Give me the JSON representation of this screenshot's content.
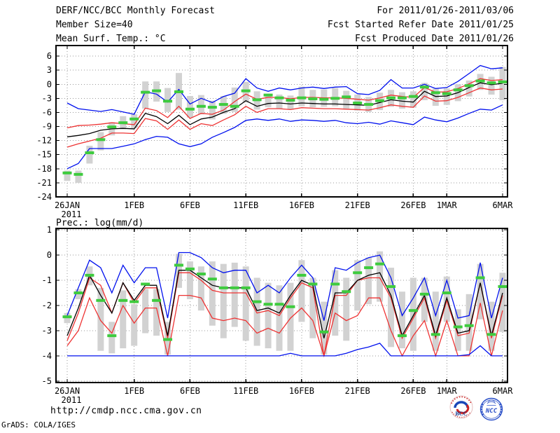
{
  "header": {
    "rows": [
      {
        "left": "DERF/NCC/BCC Monthly Forecast",
        "right": "For 2011/01/26-2011/03/06"
      },
      {
        "left": "Member Size=40",
        "right": "Fcst Started Refer Date 2011/01/25"
      },
      {
        "left": "Mean Surf. Temp.: °C",
        "right": "Fcst Produced Date 2011/01/26"
      }
    ]
  },
  "footer": {
    "url": "http://cmdp.ncc.cma.gov.cn",
    "credit": "GrADS: COLA/IGES",
    "logos": [
      {
        "label": "BCC"
      },
      {
        "label": "NCC"
      }
    ]
  },
  "colors": {
    "line_blue": "#0010ee",
    "line_red": "#ee3333",
    "line_black": "#000000",
    "marker_green": "#3ecb3e",
    "bar_gray": "#d2d2d2",
    "grid_gray": "#9a9a9a",
    "frame": "#000000",
    "logo_blue": "#1a47b8",
    "logo_red": "#cc2222",
    "logo_ncc_blue": "#2b50c8"
  },
  "chart_data": [
    {
      "name": "surface-temperature",
      "type": "line",
      "title": "Mean Surf. Temp.: °C",
      "x_days": 40,
      "x_tick_labels": [
        "26JAN",
        "1FEB",
        "6FEB",
        "11FEB",
        "16FEB",
        "21FEB",
        "26FEB",
        "1MAR",
        "6MAR"
      ],
      "x_tick_days": [
        0,
        6,
        11,
        16,
        21,
        26,
        31,
        34,
        39
      ],
      "x_sub_label": "2011",
      "ylim": [
        -24,
        8.25
      ],
      "yticks": [
        6,
        3,
        0,
        -3,
        -6,
        -9,
        -12,
        -15,
        -18,
        -21,
        -24
      ],
      "grid": true,
      "legend": "none",
      "series": [
        {
          "name": "max",
          "color": "blue",
          "values": [
            -4.0,
            -5.2,
            -5.5,
            -5.8,
            -5.4,
            -5.9,
            -6.4,
            -1.6,
            -2.1,
            -3.8,
            -1.1,
            -4.2,
            -3.0,
            -3.9,
            -2.6,
            -1.9,
            1.2,
            -0.8,
            -1.5,
            -0.8,
            -1.2,
            -0.8,
            -0.6,
            -0.9,
            -0.6,
            -0.5,
            -2.0,
            -2.2,
            -1.3,
            1.0,
            -0.8,
            -0.8,
            0.0,
            -0.9,
            -0.7,
            0.6,
            2.3,
            4.0,
            3.3,
            3.5
          ]
        },
        {
          "name": "upper",
          "color": "red",
          "values": [
            -9.3,
            -8.8,
            -8.7,
            -8.5,
            -8.2,
            -8.4,
            -8.6,
            -5.1,
            -5.6,
            -7.1,
            -4.7,
            -7.3,
            -6.2,
            -6.4,
            -5.5,
            -3.7,
            -2.1,
            -3.2,
            -2.8,
            -2.8,
            -3.1,
            -2.8,
            -2.8,
            -2.9,
            -2.9,
            -3.0,
            -3.2,
            -3.4,
            -2.9,
            -2.3,
            -2.6,
            -2.8,
            -0.7,
            -1.7,
            -1.6,
            -0.9,
            0.1,
            1.2,
            0.8,
            1.0
          ]
        },
        {
          "name": "mean",
          "color": "black",
          "values": [
            -11.2,
            -10.9,
            -10.5,
            -9.8,
            -9.5,
            -9.4,
            -9.5,
            -6.2,
            -6.9,
            -8.4,
            -6.6,
            -8.6,
            -7.4,
            -7.0,
            -6.0,
            -5.2,
            -3.5,
            -4.7,
            -4.1,
            -4.0,
            -4.2,
            -4.0,
            -4.1,
            -4.2,
            -4.2,
            -4.3,
            -4.4,
            -4.5,
            -3.9,
            -3.3,
            -3.6,
            -3.8,
            -1.5,
            -2.6,
            -2.5,
            -1.8,
            -0.7,
            0.3,
            -0.1,
            0.2
          ]
        },
        {
          "name": "lower",
          "color": "red",
          "values": [
            -13.4,
            -12.7,
            -12.1,
            -11.5,
            -10.4,
            -10.4,
            -10.5,
            -7.3,
            -7.8,
            -9.6,
            -7.6,
            -9.6,
            -8.4,
            -8.8,
            -7.6,
            -6.5,
            -4.7,
            -6.0,
            -5.2,
            -5.2,
            -5.4,
            -5.0,
            -5.1,
            -5.2,
            -5.2,
            -5.3,
            -5.4,
            -5.5,
            -5.0,
            -4.4,
            -4.7,
            -4.9,
            -2.5,
            -3.6,
            -3.5,
            -2.8,
            -1.8,
            -0.8,
            -1.2,
            -1.0
          ]
        },
        {
          "name": "min",
          "color": "blue",
          "values": [
            -18.0,
            -16.9,
            -13.7,
            -13.7,
            -13.7,
            -13.2,
            -12.7,
            -11.8,
            -11.1,
            -11.3,
            -12.7,
            -13.3,
            -12.7,
            -11.3,
            -10.3,
            -9.2,
            -7.7,
            -7.4,
            -7.7,
            -7.4,
            -7.9,
            -7.6,
            -7.7,
            -7.9,
            -7.7,
            -8.2,
            -8.4,
            -8.1,
            -8.5,
            -7.8,
            -8.2,
            -8.6,
            -7.0,
            -7.6,
            -8.0,
            -7.2,
            -6.2,
            -5.3,
            -5.5,
            -4.4
          ]
        }
      ],
      "green_markers": [
        -18.9,
        -19.2,
        -14.6,
        -11.8,
        -9.1,
        -8.2,
        -7.4,
        -1.7,
        -1.4,
        -3.6,
        -1.6,
        -5.3,
        -4.7,
        -4.9,
        -4.3,
        -4.7,
        -1.4,
        -3.3,
        -2.3,
        -2.9,
        -3.4,
        -2.9,
        -3.1,
        -3.2,
        -3.0,
        -2.7,
        -4.0,
        -4.3,
        -3.5,
        -2.9,
        -2.9,
        -2.6,
        -0.6,
        -1.8,
        -2.0,
        -1.2,
        -0.3,
        0.7,
        0.3,
        0.5
      ],
      "spread_bars": [
        [
          -18.4,
          -20.6
        ],
        [
          -18.4,
          -21.0
        ],
        [
          -13.1,
          -16.9
        ],
        [
          -10.2,
          -14.1
        ],
        [
          -8.1,
          -10.9
        ],
        [
          -6.8,
          -9.6
        ],
        [
          -6.4,
          -9.4
        ],
        [
          0.6,
          -5.2
        ],
        [
          0.6,
          -3.7
        ],
        [
          -0.8,
          -5.9
        ],
        [
          2.4,
          -5.4
        ],
        [
          -2.5,
          -7.1
        ],
        [
          -2.3,
          -6.4
        ],
        [
          -3.5,
          -7.5
        ],
        [
          -2.5,
          -6.3
        ],
        [
          -0.7,
          -5.9
        ],
        [
          0.5,
          -3.9
        ],
        [
          -1.5,
          -5.4
        ],
        [
          -2.0,
          -4.9
        ],
        [
          -2.2,
          -5.2
        ],
        [
          -2.4,
          -5.4
        ],
        [
          -0.5,
          -4.7
        ],
        [
          -1.2,
          -4.9
        ],
        [
          -1.1,
          -4.8
        ],
        [
          -0.8,
          -4.7
        ],
        [
          -1.4,
          -5.2
        ],
        [
          -2.2,
          -5.6
        ],
        [
          -2.7,
          -5.9
        ],
        [
          -1.8,
          -5.5
        ],
        [
          -1.2,
          -4.8
        ],
        [
          -1.7,
          -5.2
        ],
        [
          -1.5,
          -5.0
        ],
        [
          0.3,
          -3.4
        ],
        [
          -0.9,
          -4.6
        ],
        [
          -0.9,
          -4.4
        ],
        [
          0.0,
          -3.6
        ],
        [
          0.8,
          -2.6
        ],
        [
          2.2,
          -1.2
        ],
        [
          1.6,
          -2.2
        ],
        [
          3.7,
          -3.4
        ]
      ]
    },
    {
      "name": "precipitation",
      "type": "line",
      "title": "Prec.: log(mm/d)",
      "x_days": 40,
      "x_tick_labels": [
        "26JAN",
        "1FEB",
        "6FEB",
        "11FEB",
        "16FEB",
        "21FEB",
        "26FEB",
        "1MAR",
        "6MAR"
      ],
      "x_tick_days": [
        0,
        6,
        11,
        16,
        21,
        26,
        31,
        34,
        39
      ],
      "x_sub_label": "2011",
      "ylim": [
        -5.06,
        1.06
      ],
      "yticks": [
        1,
        0,
        -1,
        -2,
        -3,
        -4,
        -5
      ],
      "grid": true,
      "legend": "none",
      "series": [
        {
          "name": "max",
          "color": "blue",
          "values": [
            -2.4,
            -1.3,
            -0.2,
            -0.5,
            -1.5,
            -0.4,
            -1.1,
            -0.5,
            -0.5,
            -2.5,
            0.1,
            0.1,
            -0.1,
            -0.5,
            -0.7,
            -0.6,
            -0.6,
            -1.5,
            -1.2,
            -1.5,
            -0.9,
            -0.4,
            -0.9,
            -2.6,
            -0.5,
            -0.6,
            -0.3,
            -0.1,
            0.0,
            -0.9,
            -2.4,
            -1.7,
            -0.9,
            -2.4,
            -1.0,
            -2.5,
            -2.4,
            -0.3,
            -2.5,
            -0.9
          ]
        },
        {
          "name": "upper",
          "color": "red",
          "values": [
            -3.4,
            -2.3,
            -0.9,
            -1.2,
            -2.3,
            -1.1,
            -1.9,
            -1.3,
            -1.3,
            -3.3,
            -0.7,
            -0.7,
            -1.0,
            -1.4,
            -1.5,
            -1.5,
            -1.5,
            -2.3,
            -2.2,
            -2.4,
            -1.7,
            -1.1,
            -1.3,
            -4.0,
            -1.6,
            -1.6,
            -1.0,
            -0.9,
            -0.9,
            -1.7,
            -3.3,
            -2.5,
            -1.7,
            -3.3,
            -1.8,
            -3.2,
            -3.1,
            -1.1,
            -3.3,
            -1.6
          ]
        },
        {
          "name": "mean",
          "color": "black",
          "values": [
            -3.2,
            -2.1,
            -0.8,
            -1.6,
            -2.3,
            -1.1,
            -1.8,
            -1.2,
            -1.2,
            -3.2,
            -0.6,
            -0.6,
            -0.9,
            -1.2,
            -1.3,
            -1.3,
            -1.3,
            -2.2,
            -2.1,
            -2.3,
            -1.6,
            -1.0,
            -1.2,
            -3.3,
            -1.5,
            -1.5,
            -1.0,
            -0.8,
            -0.7,
            -1.6,
            -3.2,
            -2.4,
            -1.6,
            -3.2,
            -1.7,
            -3.1,
            -3.0,
            -1.1,
            -3.2,
            -1.5
          ]
        },
        {
          "name": "lower",
          "color": "red",
          "values": [
            -3.6,
            -3.0,
            -1.7,
            -2.6,
            -3.1,
            -2.0,
            -2.7,
            -2.1,
            -2.1,
            -4.0,
            -1.6,
            -1.6,
            -1.7,
            -2.5,
            -2.6,
            -2.5,
            -2.6,
            -3.1,
            -2.9,
            -3.1,
            -2.5,
            -2.1,
            -2.6,
            -4.0,
            -2.3,
            -2.6,
            -2.4,
            -1.7,
            -1.7,
            -3.0,
            -4.0,
            -3.2,
            -2.6,
            -4.0,
            -2.6,
            -4.0,
            -4.0,
            -1.9,
            -4.0,
            -2.2
          ]
        },
        {
          "name": "min",
          "color": "blue",
          "values": [
            -4.0,
            -4.0,
            -4.0,
            -4.0,
            -4.0,
            -4.0,
            -4.0,
            -4.0,
            -4.0,
            -4.0,
            -4.0,
            -4.0,
            -4.0,
            -4.0,
            -4.0,
            -4.0,
            -4.0,
            -4.0,
            -4.0,
            -4.0,
            -3.9,
            -4.0,
            -4.0,
            -4.0,
            -4.0,
            -3.9,
            -3.75,
            -3.65,
            -3.5,
            -4.0,
            -4.0,
            -4.0,
            -4.0,
            -4.0,
            -4.0,
            -4.0,
            -3.95,
            -3.6,
            -4.0,
            -4.0
          ]
        }
      ],
      "green_markers": [
        -2.45,
        -1.5,
        -0.8,
        -1.8,
        -3.2,
        -1.8,
        -1.85,
        -1.15,
        -1.8,
        -3.35,
        -0.4,
        -0.55,
        -0.75,
        -0.95,
        -1.3,
        -1.3,
        -1.3,
        -1.85,
        -1.95,
        -1.95,
        -2.05,
        -0.8,
        -1.15,
        -3.05,
        -1.15,
        -1.45,
        -0.7,
        -0.5,
        -0.35,
        -1.25,
        -3.2,
        -2.2,
        -1.55,
        -3.15,
        -1.5,
        -2.85,
        -2.8,
        -0.9,
        -3.15,
        -1.25
      ],
      "spread_bars": [
        [
          -2.3,
          -2.7
        ],
        [
          -1.35,
          -1.75
        ],
        [
          -0.45,
          -1.2
        ],
        [
          -1.3,
          -3.8
        ],
        [
          -2.65,
          -3.9
        ],
        [
          -1.4,
          -3.7
        ],
        [
          -1.95,
          -3.6
        ],
        [
          -1.35,
          -3.1
        ],
        [
          -1.35,
          -3.2
        ],
        [
          -2.65,
          -3.95
        ],
        [
          0.05,
          -1.3
        ],
        [
          -0.25,
          -1.75
        ],
        [
          -0.45,
          -2.2
        ],
        [
          -0.25,
          -2.8
        ],
        [
          -0.35,
          -3.3
        ],
        [
          -0.3,
          -2.85
        ],
        [
          -0.45,
          -3.4
        ],
        [
          -0.9,
          -3.6
        ],
        [
          -1.1,
          -3.7
        ],
        [
          -1.2,
          -3.8
        ],
        [
          -1.1,
          -3.8
        ],
        [
          -0.2,
          -2.65
        ],
        [
          -0.9,
          -3.3
        ],
        [
          -1.85,
          -3.95
        ],
        [
          -0.6,
          -3.2
        ],
        [
          -0.9,
          -3.4
        ],
        [
          -0.2,
          -2.2
        ],
        [
          -0.1,
          -1.95
        ],
        [
          0.15,
          -1.85
        ],
        [
          -0.5,
          -3.65
        ],
        [
          -1.45,
          -3.7
        ],
        [
          -0.9,
          -3.8
        ],
        [
          -0.9,
          -2.65
        ],
        [
          -1.45,
          -3.8
        ],
        [
          -0.85,
          -2.65
        ],
        [
          -2.15,
          -3.8
        ],
        [
          -1.55,
          -3.8
        ],
        [
          -0.35,
          -2.55
        ],
        [
          -1.85,
          -3.8
        ],
        [
          -0.7,
          -3.05
        ]
      ]
    }
  ]
}
